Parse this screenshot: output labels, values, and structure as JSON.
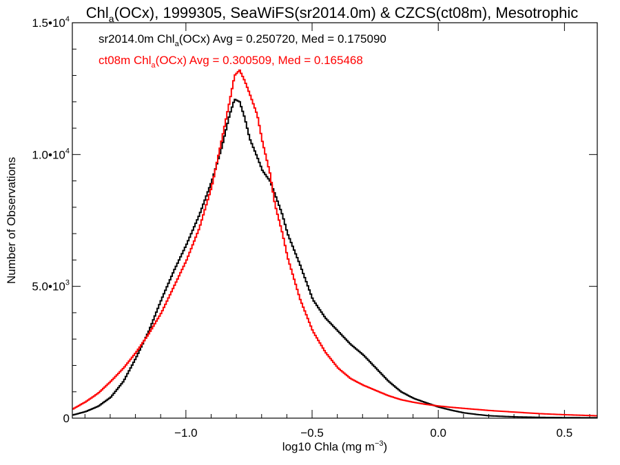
{
  "title": {
    "part1": "Chl",
    "sub": "a",
    "part2": "(OCx), 1999305, SeaWiFS(sr2014.0m) & CZCS(ct08m), Mesotrophic"
  },
  "legend": [
    {
      "prefix": "sr2014.0m Chl",
      "sub": "a",
      "suffix": "(OCx) Avg = 0.250720, Med = 0.175090",
      "color": "#000000"
    },
    {
      "prefix": "ct08m Chl",
      "sub": "a",
      "suffix": "(OCx) Avg = 0.300509, Med = 0.165468",
      "color": "#ff0000"
    }
  ],
  "yaxis": {
    "label": "Number of Observations",
    "ticks": [
      {
        "value": 0,
        "mant": "0",
        "exp": ""
      },
      {
        "value": 5000,
        "mant": "5.0•10",
        "exp": "3"
      },
      {
        "value": 10000,
        "mant": "1.0•10",
        "exp": "4"
      },
      {
        "value": 15000,
        "mant": "1.5•10",
        "exp": "4"
      }
    ]
  },
  "xaxis": {
    "label_main": "log10 Chla (mg m",
    "label_exp": "−3",
    "label_end": ")",
    "ticks": [
      {
        "value": -1.0,
        "label": "−1.0"
      },
      {
        "value": -0.5,
        "label": "−0.5"
      },
      {
        "value": 0.0,
        "label": "0.0"
      },
      {
        "value": 0.5,
        "label": "0.5"
      }
    ]
  },
  "chart_data": {
    "type": "line",
    "title": "Chla(OCx), 1999305, SeaWiFS(sr2014.0m) & CZCS(ct08m), Mesotrophic",
    "xlabel": "log10 Chla (mg m-3)",
    "ylabel": "Number of Observations",
    "xlim": [
      -1.45,
      0.63
    ],
    "ylim": [
      0,
      15000
    ],
    "step": true,
    "grid": false,
    "legend_position": "top-left",
    "series": [
      {
        "name": "sr2014.0m Chla(OCx) Avg = 0.250720, Med = 0.175090",
        "color": "#000000",
        "points": [
          [
            -1.45,
            120
          ],
          [
            -1.4,
            250
          ],
          [
            -1.35,
            450
          ],
          [
            -1.3,
            800
          ],
          [
            -1.25,
            1400
          ],
          [
            -1.2,
            2300
          ],
          [
            -1.15,
            3300
          ],
          [
            -1.1,
            4500
          ],
          [
            -1.05,
            5600
          ],
          [
            -1.0,
            6600
          ],
          [
            -0.95,
            7700
          ],
          [
            -0.9,
            9000
          ],
          [
            -0.86,
            10300
          ],
          [
            -0.83,
            11500
          ],
          [
            -0.81,
            12100
          ],
          [
            -0.79,
            12000
          ],
          [
            -0.77,
            11400
          ],
          [
            -0.75,
            10600
          ],
          [
            -0.72,
            9900
          ],
          [
            -0.7,
            9400
          ],
          [
            -0.67,
            9000
          ],
          [
            -0.65,
            8500
          ],
          [
            -0.62,
            7700
          ],
          [
            -0.6,
            7000
          ],
          [
            -0.55,
            5800
          ],
          [
            -0.5,
            4500
          ],
          [
            -0.45,
            3800
          ],
          [
            -0.4,
            3300
          ],
          [
            -0.35,
            2800
          ],
          [
            -0.3,
            2400
          ],
          [
            -0.25,
            1900
          ],
          [
            -0.2,
            1400
          ],
          [
            -0.15,
            1000
          ],
          [
            -0.1,
            750
          ],
          [
            -0.05,
            580
          ],
          [
            0.0,
            420
          ],
          [
            0.05,
            300
          ],
          [
            0.1,
            200
          ],
          [
            0.15,
            140
          ],
          [
            0.2,
            90
          ],
          [
            0.3,
            50
          ],
          [
            0.4,
            30
          ],
          [
            0.5,
            20
          ],
          [
            0.63,
            15
          ]
        ]
      },
      {
        "name": "ct08m Chla(OCx) Avg = 0.300509, Med = 0.165468",
        "color": "#ff0000",
        "points": [
          [
            -1.45,
            350
          ],
          [
            -1.4,
            620
          ],
          [
            -1.35,
            950
          ],
          [
            -1.3,
            1400
          ],
          [
            -1.25,
            1900
          ],
          [
            -1.2,
            2500
          ],
          [
            -1.15,
            3200
          ],
          [
            -1.1,
            4000
          ],
          [
            -1.05,
            5000
          ],
          [
            -1.0,
            6000
          ],
          [
            -0.95,
            7200
          ],
          [
            -0.9,
            8800
          ],
          [
            -0.86,
            10600
          ],
          [
            -0.83,
            12000
          ],
          [
            -0.81,
            13000
          ],
          [
            -0.79,
            13200
          ],
          [
            -0.77,
            12800
          ],
          [
            -0.75,
            12300
          ],
          [
            -0.72,
            11500
          ],
          [
            -0.7,
            10500
          ],
          [
            -0.67,
            9300
          ],
          [
            -0.65,
            8100
          ],
          [
            -0.62,
            7000
          ],
          [
            -0.6,
            6100
          ],
          [
            -0.55,
            4500
          ],
          [
            -0.5,
            3300
          ],
          [
            -0.45,
            2500
          ],
          [
            -0.4,
            1900
          ],
          [
            -0.35,
            1500
          ],
          [
            -0.3,
            1250
          ],
          [
            -0.25,
            1050
          ],
          [
            -0.2,
            850
          ],
          [
            -0.15,
            700
          ],
          [
            -0.1,
            600
          ],
          [
            -0.05,
            520
          ],
          [
            0.0,
            460
          ],
          [
            0.05,
            410
          ],
          [
            0.1,
            370
          ],
          [
            0.15,
            330
          ],
          [
            0.2,
            290
          ],
          [
            0.3,
            230
          ],
          [
            0.4,
            170
          ],
          [
            0.5,
            130
          ],
          [
            0.63,
            90
          ]
        ]
      }
    ]
  }
}
